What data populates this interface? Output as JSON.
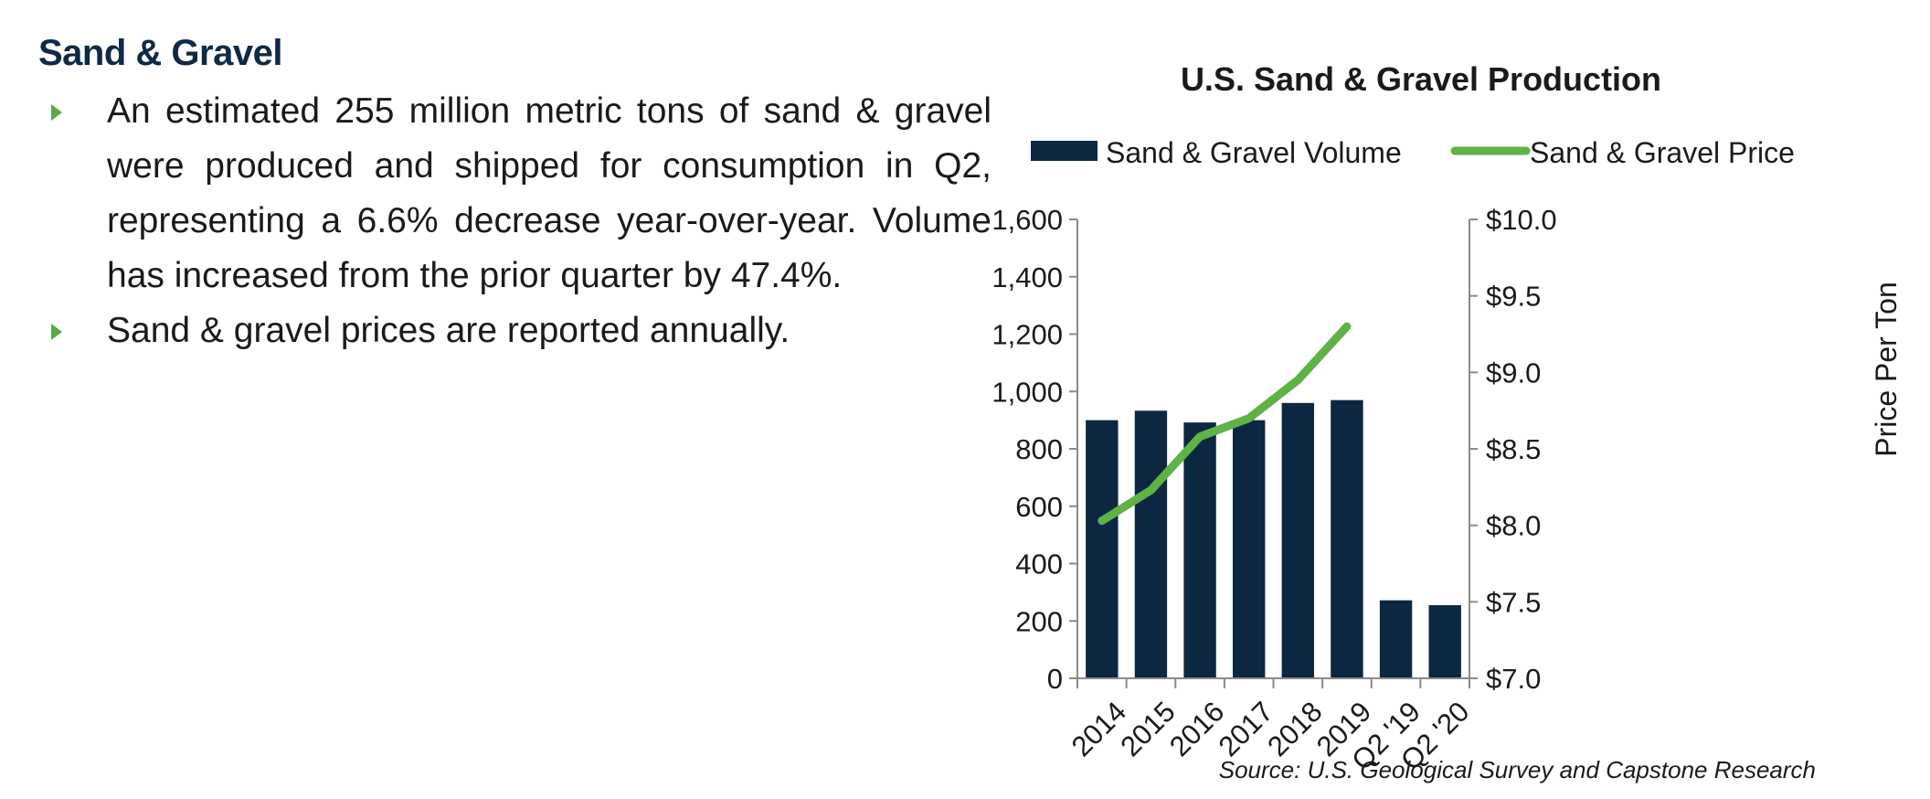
{
  "section": {
    "title": "Sand & Gravel",
    "bullets": [
      "An estimated 255 million metric tons of sand & gravel were produced and shipped for consumption in Q2, representing a 6.6% decrease year-over-year.  Volume has increased from the prior quarter by 47.4%.",
      "Sand & gravel prices are reported annually."
    ]
  },
  "chart_data": {
    "type": "bar",
    "title": "U.S. Sand & Gravel Production",
    "categories": [
      "2014",
      "2015",
      "2016",
      "2017",
      "2018",
      "2019",
      "Q2 '19",
      "Q2 '20"
    ],
    "series": [
      {
        "name": "Sand & Gravel Volume",
        "type": "bar",
        "axis": "left",
        "color": "#0c2742",
        "values": [
          900,
          933,
          892,
          900,
          960,
          970,
          272,
          255
        ]
      },
      {
        "name": "Sand & Gravel Price",
        "type": "line",
        "axis": "right",
        "color": "#5fb246",
        "values": [
          8.03,
          8.23,
          8.58,
          8.7,
          8.95,
          9.3,
          null,
          null
        ]
      }
    ],
    "y_left": {
      "min": 0,
      "max": 1600,
      "ticks": [
        "0",
        "200",
        "400",
        "600",
        "800",
        "1,000",
        "1,200",
        "1,400",
        "1,600"
      ],
      "label": ""
    },
    "y_right": {
      "min": 7.0,
      "max": 10.0,
      "ticks": [
        "$7.0",
        "$7.5",
        "$8.0",
        "$8.5",
        "$9.0",
        "$9.5",
        "$10.0"
      ],
      "label": "Price Per Ton"
    },
    "legend_position": "top",
    "grid": false,
    "source": "Source: U.S. Geological Survey and Capstone Research"
  }
}
